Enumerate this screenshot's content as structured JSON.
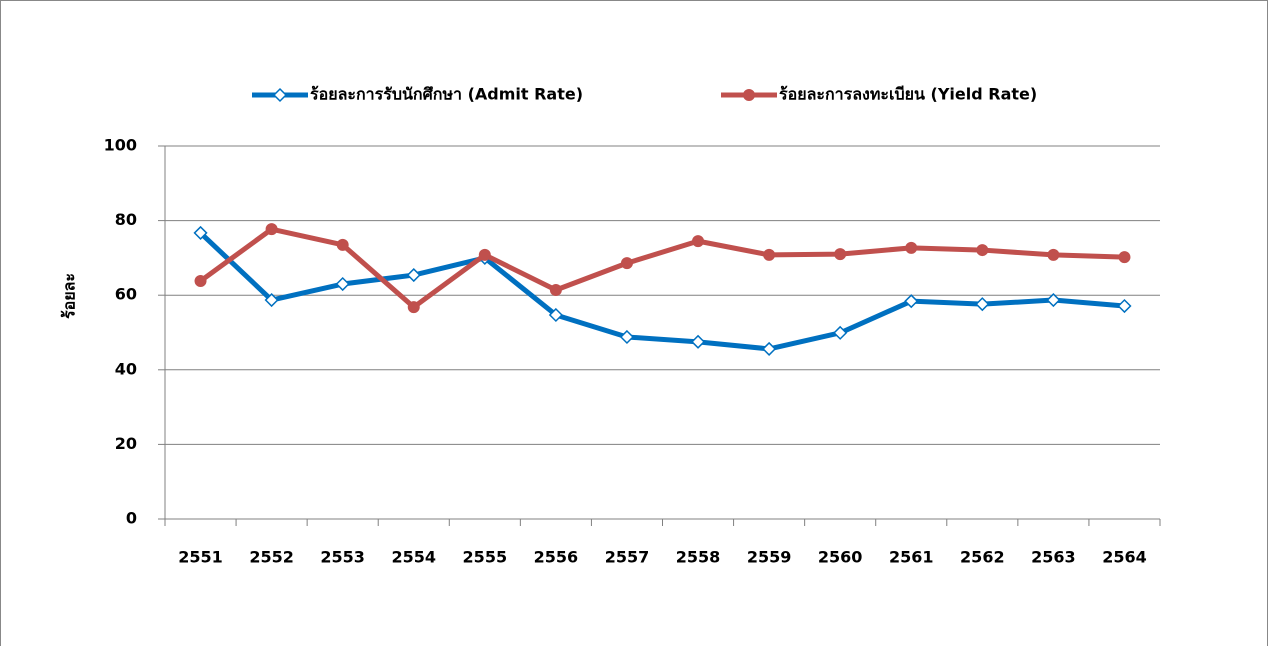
{
  "chart_data": {
    "type": "line",
    "y_label": "ร้อยละ",
    "categories": [
      "2551",
      "2552",
      "2553",
      "2554",
      "2555",
      "2556",
      "2557",
      "2558",
      "2559",
      "2560",
      "2561",
      "2562",
      "2563",
      "2564"
    ],
    "series": [
      {
        "name": "ร้อยละการรับนักศึกษา (Admit Rate)",
        "color": "#0070c0",
        "marker": "diamond",
        "values": [
          76.7,
          58.7,
          63,
          65.4,
          70,
          54.7,
          48.8,
          47.5,
          45.6,
          49.9,
          58.4,
          57.6,
          58.7,
          57.1
        ]
      },
      {
        "name": "ร้อยละการลงทะเบียน (Yield Rate)",
        "color": "#c0504d",
        "marker": "circle",
        "values": [
          63.8,
          77.7,
          73.5,
          56.8,
          70.8,
          61.4,
          68.6,
          74.5,
          70.8,
          71,
          72.7,
          72.1,
          70.8,
          70.2
        ]
      }
    ],
    "ylim": [
      0,
      100
    ],
    "yticks": [
      0,
      20,
      40,
      60,
      80,
      100
    ],
    "grid": true,
    "legend": "top"
  }
}
